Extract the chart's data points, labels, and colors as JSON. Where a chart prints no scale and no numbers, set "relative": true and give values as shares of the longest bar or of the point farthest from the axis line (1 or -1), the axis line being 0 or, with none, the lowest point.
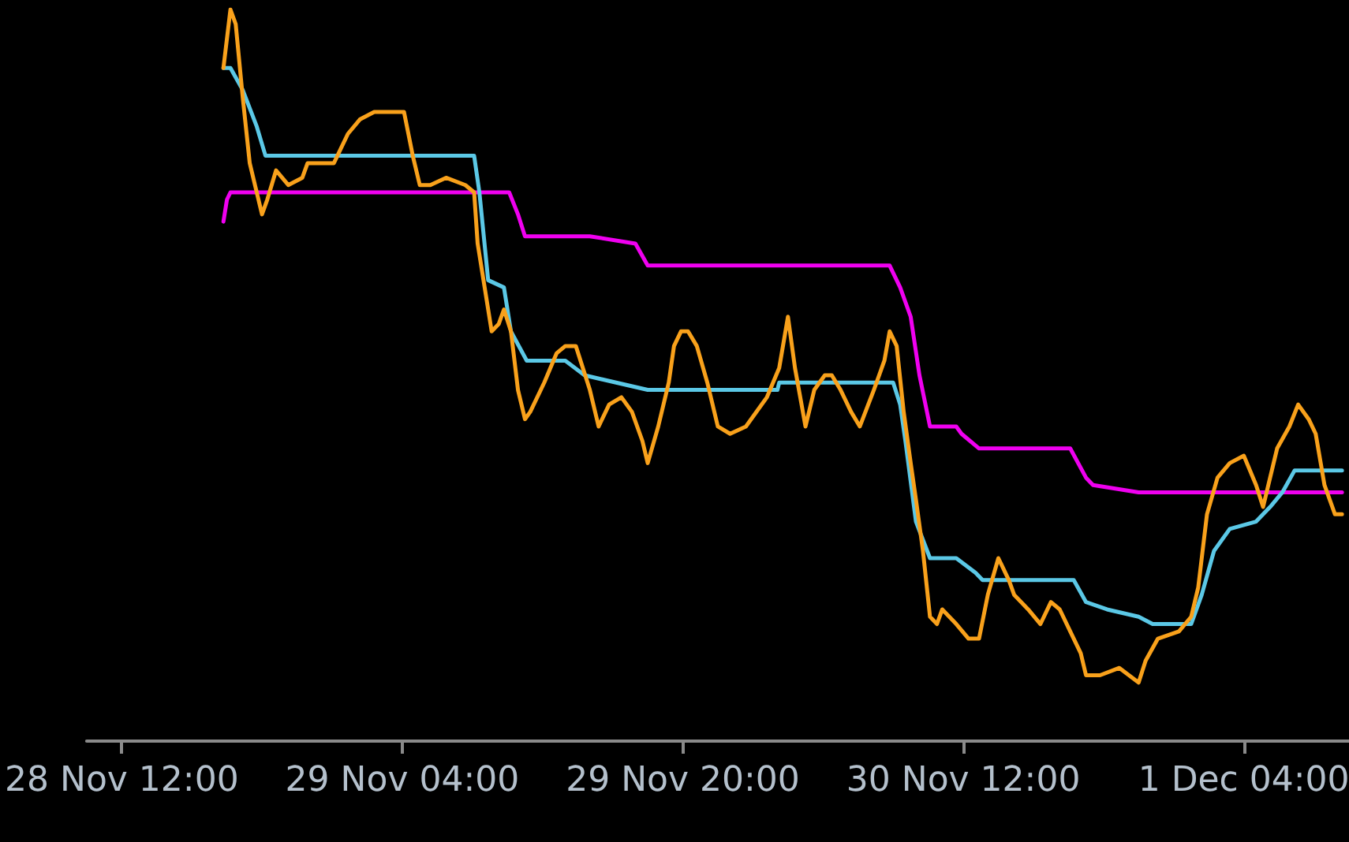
{
  "chart_data": {
    "type": "line",
    "relative": true,
    "marker": "none",
    "line_style": "solid",
    "xlim": [
      "--11-28T10:00",
      "--12-01T10:00"
    ],
    "xticks": [
      {
        "value": "--11-28T12:00",
        "label": "28 Nov 12:00"
      },
      {
        "value": "--11-29T04:00",
        "label": "29 Nov 04:00"
      },
      {
        "value": "--11-29T20:00",
        "label": "29 Nov 20:00"
      },
      {
        "value": "--11-30T12:00",
        "label": "30 Nov 12:00"
      },
      {
        "value": "--12-01T04:00",
        "label": "1 Dec 04:00"
      }
    ],
    "series": [
      {
        "color": "#f000f0",
        "x": [
          "--11-28T17:48",
          "--11-28T18:00",
          "--11-28T18:12",
          "--11-29T10:06",
          "--11-29T10:36",
          "--11-29T11:00",
          "--11-29T14:42",
          "--11-29T17:18",
          "--11-29T18:00",
          "--11-30T07:48",
          "--11-30T08:24",
          "--11-30T09:00",
          "--11-30T09:30",
          "--11-30T10:06",
          "--11-30T11:36",
          "--11-30T11:54",
          "--11-30T12:54",
          "--11-30T18:06",
          "--11-30T19:00",
          "--11-30T19:24",
          "--11-30T22:00",
          "--12-01T09:36"
        ],
        "values": [
          0.71,
          0.74,
          0.75,
          0.75,
          0.72,
          0.69,
          0.69,
          0.68,
          0.65,
          0.65,
          0.62,
          0.58,
          0.5,
          0.43,
          0.43,
          0.42,
          0.4,
          0.4,
          0.36,
          0.35,
          0.34,
          0.34
        ]
      },
      {
        "color": "#5bc8e6",
        "x": [
          "--11-28T17:48",
          "--11-28T18:12",
          "--11-28T18:54",
          "--11-28T19:42",
          "--11-28T20:12",
          "--11-29T08:06",
          "--11-29T08:24",
          "--11-29T08:54",
          "--11-29T09:48",
          "--11-29T10:12",
          "--11-29T11:06",
          "--11-29T13:18",
          "--11-29T14:24",
          "--11-29T18:00",
          "--11-30T01:24",
          "--11-30T01:30",
          "--11-30T08:00",
          "--11-30T08:24",
          "--11-30T08:42",
          "--11-30T09:18",
          "--11-30T10:06",
          "--11-30T11:36",
          "--11-30T12:42",
          "--11-30T13:06",
          "--11-30T18:18",
          "--11-30T19:00",
          "--11-30T20:12",
          "--11-30T22:00",
          "--11-30T22:48",
          "--12-01T01:00",
          "--12-01T01:36",
          "--12-01T02:18",
          "--12-01T03:12",
          "--12-01T04:42",
          "--12-01T05:30",
          "--12-01T06:12",
          "--12-01T06:54",
          "--12-01T09:36"
        ],
        "values": [
          0.92,
          0.92,
          0.89,
          0.84,
          0.8,
          0.8,
          0.75,
          0.63,
          0.62,
          0.56,
          0.52,
          0.52,
          0.5,
          0.48,
          0.48,
          0.49,
          0.49,
          0.46,
          0.41,
          0.3,
          0.25,
          0.25,
          0.23,
          0.22,
          0.22,
          0.19,
          0.18,
          0.17,
          0.16,
          0.16,
          0.2,
          0.26,
          0.29,
          0.3,
          0.32,
          0.34,
          0.37,
          0.37
        ]
      },
      {
        "color": "#f9a11b",
        "x": [
          "--11-28T17:48",
          "--11-28T18:12",
          "--11-28T18:30",
          "--11-28T18:54",
          "--11-28T19:18",
          "--11-28T19:42",
          "--11-28T20:00",
          "--11-28T20:18",
          "--11-28T20:48",
          "--11-28T21:30",
          "--11-28T22:18",
          "--11-28T22:36",
          "--11-28T23:12",
          "--11-29T00:06",
          "--11-29T00:54",
          "--11-29T01:36",
          "--11-29T02:24",
          "--11-29T03:30",
          "--11-29T04:06",
          "--11-29T04:36",
          "--11-29T05:00",
          "--11-29T05:36",
          "--11-29T06:30",
          "--11-29T07:36",
          "--11-29T08:06",
          "--11-29T08:18",
          "--11-29T08:42",
          "--11-29T09:06",
          "--11-29T09:30",
          "--11-29T09:48",
          "--11-29T10:12",
          "--11-29T10:36",
          "--11-29T11:00",
          "--11-29T11:18",
          "--11-29T12:06",
          "--11-29T12:48",
          "--11-29T13:18",
          "--11-29T13:54",
          "--11-29T14:42",
          "--11-29T15:12",
          "--11-29T15:48",
          "--11-29T16:30",
          "--11-29T17:06",
          "--11-29T17:42",
          "--11-29T18:00",
          "--11-29T18:36",
          "--11-29T19:12",
          "--11-29T19:30",
          "--11-29T19:54",
          "--11-29T20:18",
          "--11-29T20:48",
          "--11-29T21:24",
          "--11-29T22:00",
          "--11-29T22:42",
          "--11-29T23:36",
          "--11-30T00:48",
          "--11-30T01:30",
          "--11-30T02:00",
          "--11-30T02:24",
          "--11-30T03:00",
          "--11-30T03:30",
          "--11-30T04:06",
          "--11-30T04:30",
          "--11-30T05:00",
          "--11-30T05:36",
          "--11-30T06:06",
          "--11-30T06:54",
          "--11-30T07:30",
          "--11-30T07:48",
          "--11-30T08:12",
          "--11-30T08:36",
          "--11-30T09:00",
          "--11-30T09:18",
          "--11-30T09:42",
          "--11-30T10:06",
          "--11-30T10:30",
          "--11-30T10:48",
          "--11-30T11:36",
          "--11-30T12:18",
          "--11-30T12:54",
          "--11-30T13:24",
          "--11-30T14:00",
          "--11-30T14:36",
          "--11-30T14:54",
          "--11-30T15:42",
          "--11-30T16:24",
          "--11-30T17:00",
          "--11-30T17:30",
          "--11-30T18:06",
          "--11-30T18:42",
          "--11-30T19:00",
          "--11-30T19:48",
          "--11-30T20:54",
          "--11-30T22:00",
          "--11-30T22:24",
          "--11-30T23:06",
          "--12-01T00:18",
          "--12-01T01:00",
          "--12-01T01:24",
          "--12-01T01:54",
          "--12-01T02:30",
          "--12-01T03:12",
          "--12-01T04:00",
          "--12-01T04:42",
          "--12-01T05:06",
          "--12-01T05:30",
          "--12-01T05:54",
          "--12-01T06:36",
          "--12-01T07:06",
          "--12-01T07:42",
          "--12-01T08:06",
          "--12-01T08:36",
          "--12-01T09:12",
          "--12-01T09:36"
        ],
        "values": [
          0.92,
          1.0,
          0.98,
          0.88,
          0.79,
          0.75,
          0.72,
          0.74,
          0.78,
          0.76,
          0.77,
          0.79,
          0.79,
          0.79,
          0.83,
          0.85,
          0.86,
          0.86,
          0.86,
          0.8,
          0.76,
          0.76,
          0.77,
          0.76,
          0.75,
          0.68,
          0.62,
          0.56,
          0.57,
          0.59,
          0.56,
          0.48,
          0.44,
          0.45,
          0.49,
          0.53,
          0.54,
          0.54,
          0.48,
          0.43,
          0.46,
          0.47,
          0.45,
          0.41,
          0.38,
          0.43,
          0.49,
          0.54,
          0.56,
          0.56,
          0.54,
          0.49,
          0.43,
          0.42,
          0.43,
          0.47,
          0.51,
          0.58,
          0.51,
          0.43,
          0.48,
          0.5,
          0.5,
          0.48,
          0.45,
          0.43,
          0.48,
          0.52,
          0.56,
          0.54,
          0.45,
          0.38,
          0.33,
          0.26,
          0.17,
          0.16,
          0.18,
          0.16,
          0.14,
          0.14,
          0.2,
          0.25,
          0.22,
          0.2,
          0.18,
          0.16,
          0.19,
          0.18,
          0.15,
          0.12,
          0.09,
          0.09,
          0.1,
          0.08,
          0.11,
          0.14,
          0.15,
          0.17,
          0.21,
          0.31,
          0.36,
          0.38,
          0.39,
          0.35,
          0.32,
          0.36,
          0.4,
          0.43,
          0.46,
          0.44,
          0.42,
          0.35,
          0.31,
          0.31
        ]
      }
    ]
  }
}
